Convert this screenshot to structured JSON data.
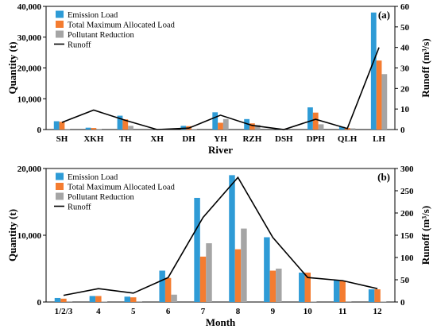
{
  "chart_data": [
    {
      "type": "bar",
      "panel_label": "(a)",
      "xlabel": "River",
      "ylabel": "Quantity (t)",
      "y2label": "Runoff (m³/s)",
      "categories": [
        "SH",
        "XKH",
        "TH",
        "XH",
        "DH",
        "YH",
        "RZH",
        "DSH",
        "DPH",
        "QLH",
        "LH"
      ],
      "ylim": [
        0,
        40000
      ],
      "yticks": [
        0,
        10000,
        20000,
        30000,
        40000
      ],
      "ytick_labels": [
        "0",
        "10,000",
        "20,000",
        "30,000",
        "40,000"
      ],
      "y2lim": [
        0,
        60
      ],
      "y2ticks": [
        0,
        10,
        20,
        30,
        40,
        50,
        60
      ],
      "series": [
        {
          "name": "Emission Load",
          "color": "#2e9bd6",
          "values": [
            2700,
            600,
            4500,
            0,
            1200,
            5600,
            3400,
            50,
            7200,
            900,
            38000
          ]
        },
        {
          "name": "Total Maximum Allocated Load",
          "color": "#f47c30",
          "values": [
            2500,
            500,
            3300,
            0,
            1100,
            2200,
            2000,
            40,
            5500,
            500,
            22400
          ]
        },
        {
          "name": "Pollutant Reduction",
          "color": "#a5a5a5",
          "values": [
            200,
            100,
            1200,
            0,
            100,
            3400,
            1500,
            10,
            1700,
            400,
            18000
          ]
        }
      ],
      "line": {
        "name": "Runoff",
        "color": "#000000",
        "axis": "right",
        "values": [
          3.5,
          9.5,
          4.5,
          0,
          0.7,
          7,
          2,
          0,
          5,
          0.5,
          40
        ]
      },
      "legend_position": "top-left",
      "grid": false
    },
    {
      "type": "bar",
      "panel_label": "(b)",
      "xlabel": "Month",
      "ylabel": "Quantity (t)",
      "y2label": "Runoff (m³/s)",
      "categories": [
        "1/2/3",
        "4",
        "5",
        "6",
        "7",
        "8",
        "9",
        "10",
        "11",
        "12"
      ],
      "ylim": [
        0,
        20000
      ],
      "yticks": [
        0,
        10000,
        20000
      ],
      "ytick_labels": [
        "0",
        "10,000",
        "20,000"
      ],
      "y2lim": [
        0,
        300
      ],
      "y2ticks": [
        0,
        50,
        100,
        150,
        200,
        250,
        300
      ],
      "series": [
        {
          "name": "Emission Load",
          "color": "#2e9bd6",
          "values": [
            600,
            900,
            800,
            4700,
            15600,
            19000,
            9700,
            4400,
            3300,
            1900
          ]
        },
        {
          "name": "Total Maximum Allocated Load",
          "color": "#f47c30",
          "values": [
            500,
            900,
            700,
            3600,
            6800,
            7900,
            4700,
            4400,
            3200,
            1900
          ]
        },
        {
          "name": "Pollutant Reduction",
          "color": "#a5a5a5",
          "values": [
            100,
            50,
            100,
            1100,
            8800,
            11000,
            5000,
            50,
            100,
            50
          ]
        }
      ],
      "line": {
        "name": "Runoff",
        "color": "#000000",
        "axis": "right",
        "values": [
          15,
          30,
          20,
          55,
          190,
          280,
          145,
          55,
          48,
          30
        ]
      },
      "legend_position": "top-left",
      "grid": false
    }
  ]
}
